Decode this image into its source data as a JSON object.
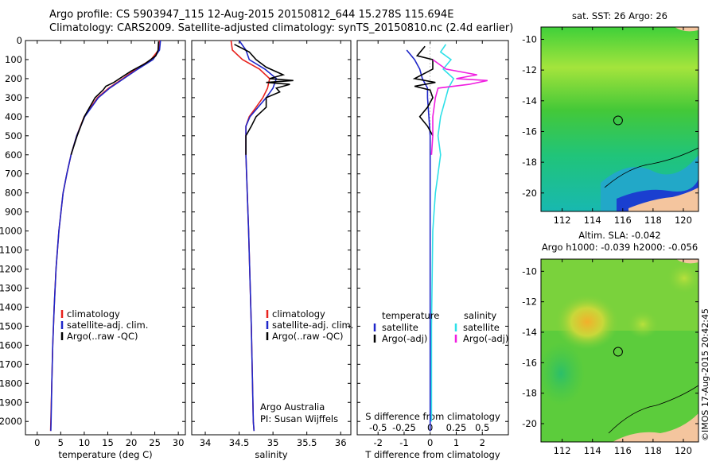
{
  "header": {
    "title_line1": "Argo profile: CS 5903947_115 12-Aug-2015 20150812_644 15.278S 115.694E",
    "title_line2": "Climatology: CARS2009. Satellite-adjusted climatology: synTS_20150810.nc (2.4d earlier)"
  },
  "stamp": "©IMOS 17-Aug-2015 20:42:45",
  "colors": {
    "climatology": "#e8221d",
    "satellite": "#1f27c9",
    "argo": "#000000",
    "sat_salinity": "#2fe0e8",
    "argo_salinity": "#f01ee0"
  },
  "chart_data": [
    {
      "type": "line",
      "xlabel": "temperature (deg C)",
      "xticks": [
        0,
        5,
        10,
        15,
        20,
        25,
        30
      ],
      "xlim": [
        -2.5,
        31.5
      ],
      "ylim": [
        2070,
        0
      ],
      "yticks": [
        0,
        100,
        200,
        300,
        400,
        500,
        600,
        700,
        800,
        900,
        1000,
        1100,
        1200,
        1300,
        1400,
        1500,
        1600,
        1700,
        1800,
        1900,
        2000
      ],
      "legend_position": "center-left",
      "series": [
        {
          "name": "climatology",
          "color": "#e8221d",
          "depth": [
            0,
            50,
            100,
            150,
            200,
            250,
            300,
            400,
            500,
            600,
            700,
            800,
            1000,
            1200,
            1400,
            1600,
            1800,
            2000,
            2050
          ],
          "values": [
            26,
            25.8,
            24.2,
            21,
            18.2,
            15.2,
            12.8,
            10,
            8.4,
            7.2,
            6.3,
            5.5,
            4.6,
            4,
            3.6,
            3.3,
            3.1,
            2.9,
            2.85
          ]
        },
        {
          "name": "satellite-adj. clim.",
          "color": "#1f27c9",
          "depth": [
            0,
            50,
            100,
            150,
            200,
            250,
            300,
            400,
            500,
            600,
            700,
            800,
            1000,
            1200,
            1400,
            1600,
            1800,
            2000,
            2050
          ],
          "values": [
            26.2,
            26,
            24.6,
            21.4,
            18.4,
            15.4,
            13,
            10.1,
            8.4,
            7.2,
            6.3,
            5.5,
            4.6,
            4,
            3.6,
            3.3,
            3.1,
            2.95,
            2.9
          ]
        },
        {
          "name": "Argo(..raw -QC)",
          "color": "#000000",
          "depth": [
            5,
            50,
            80,
            120,
            160,
            200,
            220,
            240,
            260,
            300,
            400,
            500,
            600
          ],
          "values": [
            25.8,
            25.7,
            25.2,
            23,
            20,
            17.5,
            16.3,
            14.6,
            14,
            12.3,
            10,
            8.5,
            7.2
          ]
        }
      ],
      "annotations": []
    },
    {
      "type": "line",
      "xlabel": "salinity",
      "xticks": [
        34,
        34.5,
        35,
        35.5,
        36
      ],
      "xlim": [
        33.8,
        36.15
      ],
      "ylim": [
        2070,
        0
      ],
      "legend_position": "center-right",
      "series": [
        {
          "name": "climatology",
          "color": "#e8221d",
          "depth": [
            0,
            50,
            100,
            150,
            200,
            250,
            300,
            350,
            400,
            450,
            500,
            600,
            800,
            1000,
            1500,
            2000,
            2050
          ],
          "values": [
            34.38,
            34.4,
            34.55,
            34.8,
            34.95,
            34.92,
            34.85,
            34.75,
            34.65,
            34.6,
            34.6,
            34.6,
            34.62,
            34.64,
            34.68,
            34.71,
            34.72
          ]
        },
        {
          "name": "satellite-adj. clim.",
          "color": "#1f27c9",
          "depth": [
            0,
            50,
            100,
            150,
            200,
            250,
            300,
            350,
            400,
            450,
            500,
            600,
            800,
            1000,
            1500,
            2000,
            2050
          ],
          "values": [
            34.5,
            34.6,
            34.65,
            34.88,
            35.05,
            35,
            34.9,
            34.78,
            34.66,
            34.6,
            34.6,
            34.6,
            34.62,
            34.64,
            34.68,
            34.71,
            34.72
          ]
        },
        {
          "name": "Argo(..raw -QC)",
          "color": "#000000",
          "depth": [
            20,
            60,
            100,
            140,
            180,
            200,
            210,
            220,
            230,
            250,
            270,
            300,
            350,
            400,
            450,
            500,
            600
          ],
          "values": [
            34.43,
            34.65,
            34.75,
            34.9,
            35.15,
            34.95,
            35.3,
            34.9,
            35.25,
            35.05,
            35.1,
            34.9,
            34.9,
            34.75,
            34.68,
            34.6,
            34.6
          ]
        }
      ],
      "annotations": [
        "Argo Australia",
        "PI: Susan Wijffels"
      ]
    },
    {
      "type": "line",
      "xlabel": "T difference from climatology",
      "xlabel_top": "S difference from climatology",
      "xticks": [
        -2,
        -1,
        0,
        1,
        2
      ],
      "xtick_labels_top": [
        "-0.5",
        "-0.25",
        "0",
        "0.25",
        "0.5"
      ],
      "xlim": [
        -2.8,
        3.0
      ],
      "ylim": [
        2070,
        0
      ],
      "legend_position": "center",
      "legend_headers": [
        "temperature",
        "salinity"
      ],
      "series": [
        {
          "name": "satellite",
          "color": "#1f27c9",
          "depth": [
            50,
            100,
            150,
            200,
            250,
            300,
            400,
            500,
            600,
            800,
            1000,
            1500,
            2000,
            2050
          ],
          "values": [
            -0.9,
            -0.6,
            -0.4,
            -0.3,
            -0.1,
            -0.1,
            -0.05,
            0,
            0,
            0,
            0,
            0,
            0,
            0
          ]
        },
        {
          "name": "Argo(-adj)",
          "color": "#000000",
          "depth": [
            30,
            80,
            100,
            150,
            200,
            220,
            240,
            260,
            300,
            350,
            400,
            450,
            500
          ],
          "values": [
            -0.2,
            -0.5,
            0.1,
            0.1,
            -0.6,
            0.2,
            -0.6,
            0,
            0.1,
            -0.1,
            -0.4,
            -0.1,
            0.1
          ]
        },
        {
          "name": "satellite",
          "color": "#2fe0e8",
          "depth": [
            20,
            60,
            100,
            150,
            200,
            250,
            300,
            400,
            500,
            600,
            700,
            800,
            900,
            1000,
            1500,
            2000
          ],
          "values": [
            0.6,
            0.4,
            0.8,
            0.5,
            0.9,
            0.7,
            0.6,
            0.4,
            0.3,
            0.4,
            0.3,
            0.2,
            0.15,
            0.1,
            0.05,
            0.05
          ]
        },
        {
          "name": "Argo(-adj)",
          "color": "#f01ee0",
          "depth": [
            100,
            150,
            180,
            200,
            210,
            230,
            250,
            300,
            400,
            500,
            600
          ],
          "values": [
            0.1,
            0.6,
            1.8,
            1.0,
            2.2,
            1.5,
            0.3,
            0.2,
            0.1,
            0.1,
            0.05
          ]
        }
      ],
      "annotations": []
    }
  ],
  "maps": [
    {
      "title": "sat. SST: 26 Argo: 26",
      "yticks": [
        "-10",
        "-12",
        "-14",
        "-16",
        "-18",
        "-20"
      ],
      "xticks": [
        "112",
        "114",
        "116",
        "118",
        "120"
      ],
      "marker": {
        "lon": 115.69,
        "lat": -15.28
      }
    },
    {
      "title_line1": "Altim. SLA: -0.042",
      "title_line2": "Argo h1000: -0.039 h2000: -0.056",
      "yticks": [
        "-10",
        "-12",
        "-14",
        "-16",
        "-18",
        "-20"
      ],
      "xticks": [
        "112",
        "114",
        "116",
        "118",
        "120"
      ],
      "marker": {
        "lon": 115.69,
        "lat": -15.28
      }
    }
  ]
}
